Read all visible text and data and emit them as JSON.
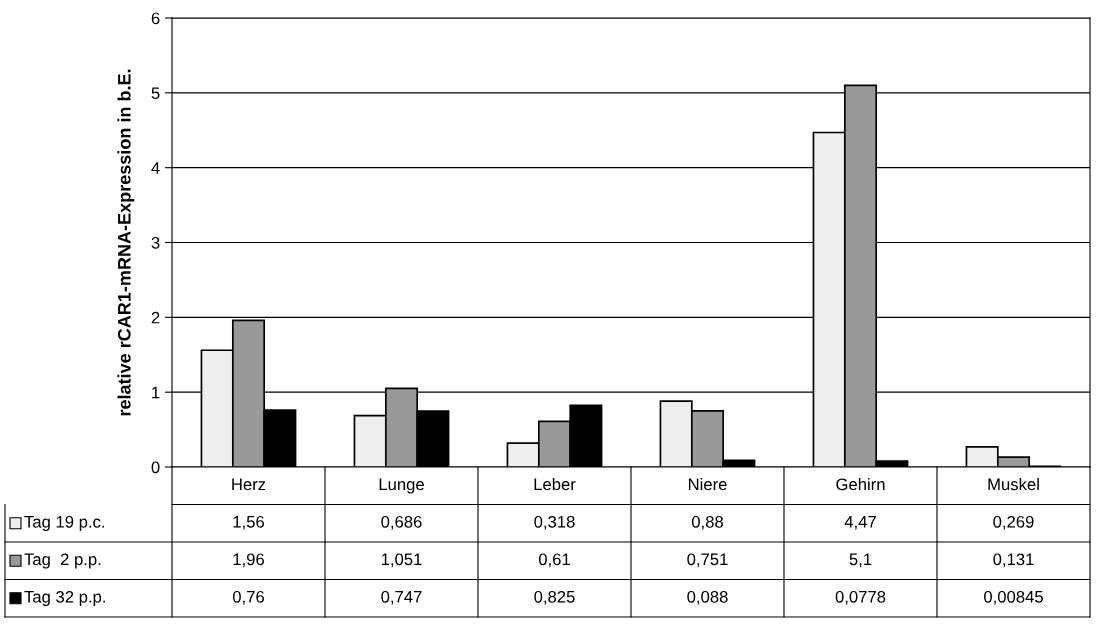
{
  "chart_data": {
    "type": "bar",
    "ylabel": "relative rCAR1-mRNA-Expression in b.E.",
    "categories": [
      "Herz",
      "Lunge",
      "Leber",
      "Niere",
      "Gehirn",
      "Muskel"
    ],
    "series": [
      {
        "name": "Tag 19 p.c.",
        "color": "#eeeeee",
        "values": [
          1.56,
          0.686,
          0.318,
          0.88,
          4.47,
          0.269
        ],
        "value_labels": [
          "1,56",
          "0,686",
          "0,318",
          "0,88",
          "4,47",
          "0,269"
        ]
      },
      {
        "name": "Tag  2 p.p.",
        "color": "#999999",
        "values": [
          1.96,
          1.051,
          0.61,
          0.751,
          5.1,
          0.131
        ],
        "value_labels": [
          "1,96",
          "1,051",
          "0,61",
          "0,751",
          "5,1",
          "0,131"
        ]
      },
      {
        "name": "Tag 32 p.p.",
        "color": "#000000",
        "values": [
          0.76,
          0.747,
          0.825,
          0.088,
          0.0778,
          0.00845
        ],
        "value_labels": [
          "0,76",
          "0,747",
          "0,825",
          "0,088",
          "0,0778",
          "0,00845"
        ]
      }
    ],
    "ylim": [
      0,
      6
    ],
    "yticks": [
      0,
      1,
      2,
      3,
      4,
      5,
      6
    ],
    "grid": "y",
    "legend": "bottom"
  }
}
